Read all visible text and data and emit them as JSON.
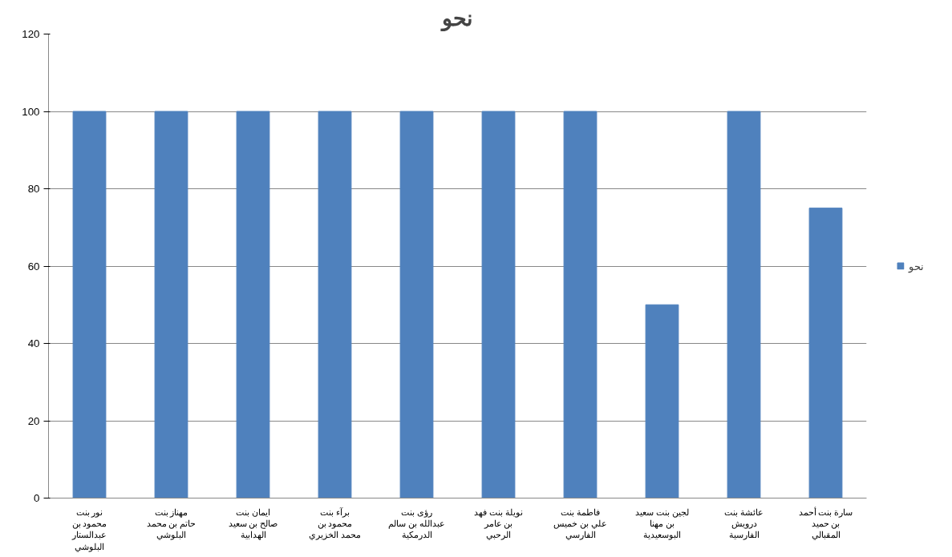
{
  "chart_data": {
    "type": "bar",
    "title": "نحو",
    "categories": [
      "نور بنت\nمحمود بن\nعبدالستار\nالبلوشي",
      "مهناز بنت\nحاتم بن محمد\nالبلوشي",
      "ايمان بنت\nصالح بن سعيد\nالهدابية",
      "برآء بنت\nمحمود بن\nمحمد الخزيري",
      "رؤى بنت\nعبدالله بن سالم\nالدرمكية",
      "نويلة بنت فهد\nبن عامر\nالرحبي",
      "فاطمة بنت\nعلي بن خميس\nالفارسي",
      "لجين بنت سعيد\nبن مهنا\nالبوسعيدية",
      "عائشة بنت\nدرويش\nالفارسية",
      "سارة بنت أحمد\nبن حميد\nالمقبالي"
    ],
    "series": [
      {
        "name": "نحو",
        "color": "#4f81bd",
        "values": [
          100,
          100,
          100,
          100,
          100,
          100,
          100,
          50,
          100,
          75
        ]
      }
    ],
    "ylim": [
      0,
      120
    ],
    "yticks": [
      0,
      20,
      40,
      60,
      80,
      100,
      120
    ],
    "grid": "y",
    "legend": "right"
  }
}
